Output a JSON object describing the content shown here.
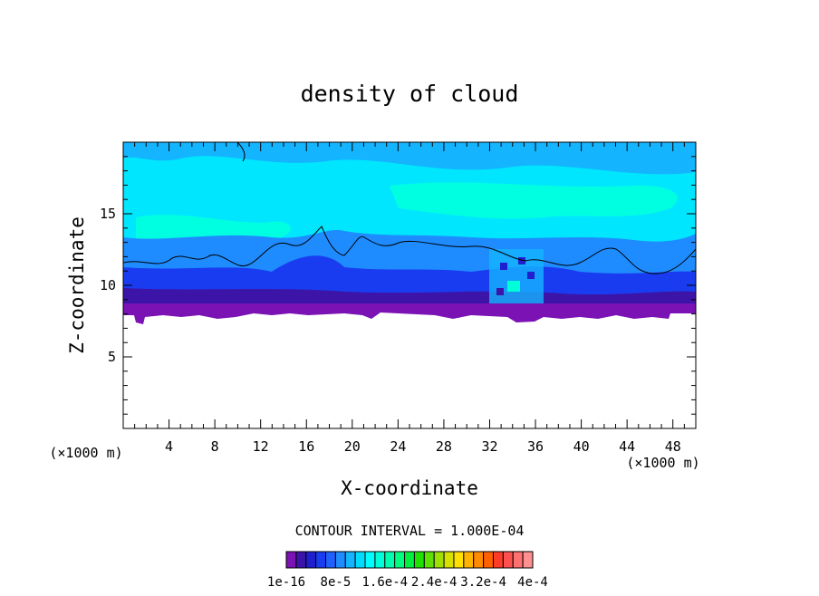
{
  "chart_data": {
    "type": "heatmap",
    "title": "density of cloud",
    "xlabel": "X-coordinate",
    "ylabel": "Z-coordinate",
    "x_unit": "(×1000 m)",
    "y_unit": "(×1000 m)",
    "xlim": [
      0,
      50
    ],
    "ylim": [
      0,
      20
    ],
    "x_ticks": [
      "4",
      "8",
      "12",
      "16",
      "20",
      "24",
      "28",
      "32",
      "36",
      "40",
      "44",
      "48"
    ],
    "y_ticks": [
      "5",
      "10",
      "15"
    ],
    "contour_interval_text": "CONTOUR INTERVAL = 1.000E-04",
    "colorbar_labels": [
      "1e-16",
      "8e-5",
      "1.6e-4",
      "2.4e-4",
      "3.2e-4",
      "4e-4"
    ],
    "colorbar_colors": [
      "#7a12b4",
      "#3c14a8",
      "#1f1fd0",
      "#1a3cf0",
      "#2060ff",
      "#1e8cff",
      "#14b4ff",
      "#00dcff",
      "#00ffff",
      "#00ffd8",
      "#00ffb0",
      "#00ff80",
      "#00f040",
      "#20e000",
      "#60e000",
      "#a0e000",
      "#d8e000",
      "#ffe000",
      "#ffb400",
      "#ff8c00",
      "#ff6000",
      "#ff3c28",
      "#ff5050",
      "#ff7070",
      "#ff9090"
    ],
    "cloud_base_km": 8,
    "cloud_top_km": 20,
    "contour_line_z_km": [
      11.2,
      11.6,
      12.5,
      11.0,
      10.8,
      11.4
    ]
  }
}
